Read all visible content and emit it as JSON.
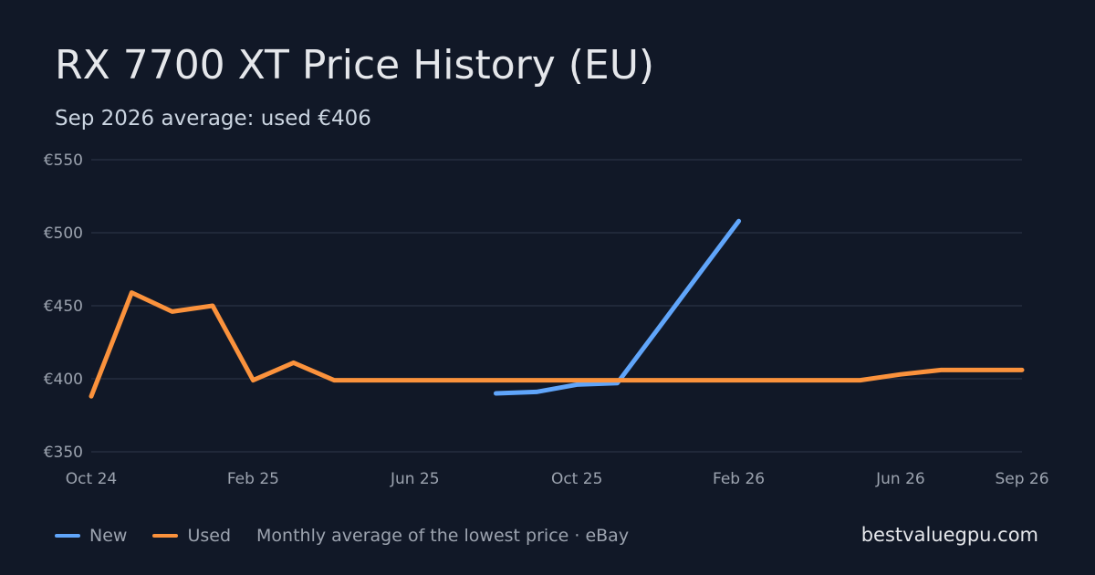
{
  "header": {
    "title": "RX 7700 XT Price History (EU)",
    "subtitle": "Sep 2026 average: used €406"
  },
  "legend": {
    "note": "Monthly average of the lowest price · eBay"
  },
  "brand": "bestvaluegpu.com",
  "colors": {
    "background": "#111827",
    "grid": "#2a3344",
    "new": "#60a5fa",
    "used": "#fb923c"
  },
  "chart_data": {
    "type": "line",
    "x": [
      "2024-10",
      "2024-11",
      "2024-12",
      "2025-01",
      "2025-02",
      "2025-03",
      "2025-04",
      "2025-05",
      "2025-06",
      "2025-07",
      "2025-08",
      "2025-09",
      "2025-10",
      "2025-11",
      "2025-12",
      "2026-01",
      "2026-02",
      "2026-03",
      "2026-04",
      "2026-05",
      "2026-06",
      "2026-07",
      "2026-08",
      "2026-09"
    ],
    "series": [
      {
        "name": "New",
        "color": "#60a5fa",
        "values": [
          null,
          null,
          null,
          null,
          null,
          null,
          null,
          null,
          null,
          null,
          390,
          391,
          396,
          397,
          434,
          471,
          508,
          null,
          null,
          null,
          null,
          null,
          null,
          null
        ]
      },
      {
        "name": "Used",
        "color": "#fb923c",
        "values": [
          388,
          459,
          446,
          450,
          399,
          411,
          399,
          399,
          399,
          399,
          399,
          399,
          399,
          399,
          399,
          399,
          399,
          399,
          399,
          399,
          403,
          406,
          406,
          406
        ]
      }
    ],
    "xticks": [
      {
        "x": "2024-10",
        "label": "Oct 24"
      },
      {
        "x": "2025-02",
        "label": "Feb 25"
      },
      {
        "x": "2025-06",
        "label": "Jun 25"
      },
      {
        "x": "2025-10",
        "label": "Oct 25"
      },
      {
        "x": "2026-02",
        "label": "Feb 26"
      },
      {
        "x": "2026-06",
        "label": "Jun 26"
      },
      {
        "x": "2026-09",
        "label": "Sep 26"
      }
    ],
    "yticks": [
      {
        "value": 350,
        "label": "€350"
      },
      {
        "value": 400,
        "label": "€400"
      },
      {
        "value": 450,
        "label": "€450"
      },
      {
        "value": 500,
        "label": "€500"
      },
      {
        "value": 550,
        "label": "€550"
      }
    ],
    "ylim": [
      350,
      550
    ],
    "grid": true,
    "legend": "bottom-left"
  }
}
